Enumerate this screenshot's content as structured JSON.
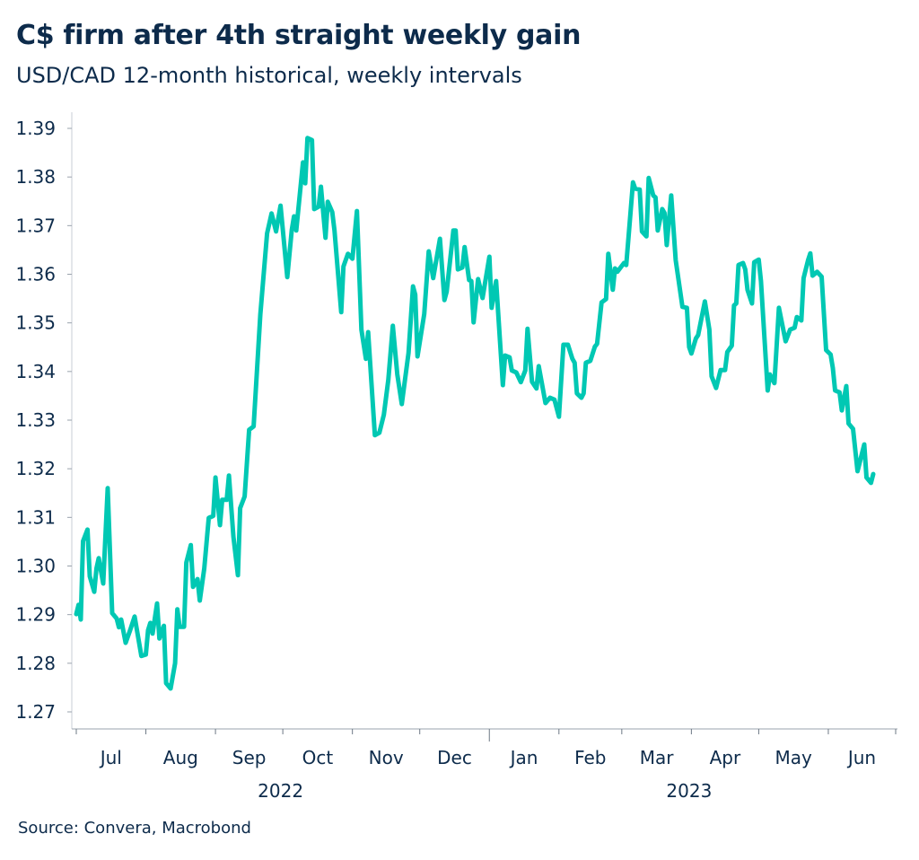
{
  "chart_data": {
    "type": "line",
    "title": "C$ firm after 4th straight weekly gain",
    "subtitle": "USD/CAD 12-month historical, weekly intervals",
    "source": "Source: Convera, Macrobond",
    "xlabel": "",
    "ylabel": "",
    "ylim": [
      1.27,
      1.39
    ],
    "xlim": [
      "2022-07-01",
      "2023-07-01"
    ],
    "y_ticks": [
      "1.27",
      "1.28",
      "1.29",
      "1.30",
      "1.31",
      "1.32",
      "1.33",
      "1.34",
      "1.35",
      "1.36",
      "1.37",
      "1.38",
      "1.39"
    ],
    "x_ticks": [
      {
        "label": "Jul",
        "date": "2022-07-01"
      },
      {
        "label": "Aug",
        "date": "2022-08-01"
      },
      {
        "label": "Sep",
        "date": "2022-09-01"
      },
      {
        "label": "Oct",
        "date": "2022-10-01"
      },
      {
        "label": "Nov",
        "date": "2022-11-01"
      },
      {
        "label": "Dec",
        "date": "2022-12-01"
      },
      {
        "label": "Jan",
        "date": "2023-01-01"
      },
      {
        "label": "Feb",
        "date": "2023-02-01"
      },
      {
        "label": "Mar",
        "date": "2023-03-01"
      },
      {
        "label": "Apr",
        "date": "2023-04-01"
      },
      {
        "label": "May",
        "date": "2023-05-01"
      },
      {
        "label": "Jun",
        "date": "2023-06-01"
      }
    ],
    "year_labels": [
      {
        "label": "2022",
        "date": "2022-09-30"
      },
      {
        "label": "2023",
        "date": "2023-03-31"
      }
    ],
    "grid": false,
    "legend": "none",
    "line_color": "#00c8b3",
    "text_color": "#0d2b4b",
    "series": [
      {
        "points": [
          [
            "2022-07-01",
            1.2901
          ],
          [
            "2022-07-02",
            1.292
          ],
          [
            "2022-07-03",
            1.289
          ],
          [
            "2022-07-04",
            1.3051
          ],
          [
            "2022-07-06",
            1.3075
          ],
          [
            "2022-07-07",
            1.2979
          ],
          [
            "2022-07-09",
            1.2947
          ],
          [
            "2022-07-10",
            1.2995
          ],
          [
            "2022-07-11",
            1.3016
          ],
          [
            "2022-07-13",
            1.2964
          ],
          [
            "2022-07-15",
            1.316
          ],
          [
            "2022-07-17",
            1.2903
          ],
          [
            "2022-07-19",
            1.2892
          ],
          [
            "2022-07-20",
            1.2874
          ],
          [
            "2022-07-21",
            1.289
          ],
          [
            "2022-07-23",
            1.2842
          ],
          [
            "2022-07-25",
            1.2868
          ],
          [
            "2022-07-27",
            1.2896
          ],
          [
            "2022-07-30",
            1.2815
          ],
          [
            "2022-08-01",
            1.2818
          ],
          [
            "2022-08-02",
            1.2868
          ],
          [
            "2022-08-03",
            1.2883
          ],
          [
            "2022-08-04",
            1.2861
          ],
          [
            "2022-08-06",
            1.2923
          ],
          [
            "2022-08-07",
            1.2851
          ],
          [
            "2022-08-09",
            1.2877
          ],
          [
            "2022-08-10",
            1.2759
          ],
          [
            "2022-08-12",
            1.2748
          ],
          [
            "2022-08-14",
            1.28
          ],
          [
            "2022-08-15",
            1.2911
          ],
          [
            "2022-08-16",
            1.2875
          ],
          [
            "2022-08-18",
            1.2875
          ],
          [
            "2022-08-19",
            1.3007
          ],
          [
            "2022-08-21",
            1.3043
          ],
          [
            "2022-08-22",
            1.2957
          ],
          [
            "2022-08-24",
            1.2973
          ],
          [
            "2022-08-25",
            1.2929
          ],
          [
            "2022-08-27",
            1.2995
          ],
          [
            "2022-08-29",
            1.3099
          ],
          [
            "2022-08-31",
            1.3103
          ],
          [
            "2022-09-01",
            1.3182
          ],
          [
            "2022-09-03",
            1.3084
          ],
          [
            "2022-09-04",
            1.3136
          ],
          [
            "2022-09-06",
            1.3136
          ],
          [
            "2022-09-07",
            1.3186
          ],
          [
            "2022-09-09",
            1.306
          ],
          [
            "2022-09-11",
            1.2981
          ],
          [
            "2022-09-12",
            1.3119
          ],
          [
            "2022-09-14",
            1.3143
          ],
          [
            "2022-09-16",
            1.328
          ],
          [
            "2022-09-18",
            1.3287
          ],
          [
            "2022-09-21",
            1.3518
          ],
          [
            "2022-09-24",
            1.3684
          ],
          [
            "2022-09-26",
            1.3725
          ],
          [
            "2022-09-28",
            1.3688
          ],
          [
            "2022-09-30",
            1.3741
          ],
          [
            "2022-10-03",
            1.3594
          ],
          [
            "2022-10-05",
            1.3691
          ],
          [
            "2022-10-06",
            1.3719
          ],
          [
            "2022-10-07",
            1.369
          ],
          [
            "2022-10-10",
            1.383
          ],
          [
            "2022-10-11",
            1.3787
          ],
          [
            "2022-10-12",
            1.388
          ],
          [
            "2022-10-14",
            1.3876
          ],
          [
            "2022-10-15",
            1.3734
          ],
          [
            "2022-10-17",
            1.3739
          ],
          [
            "2022-10-18",
            1.378
          ],
          [
            "2022-10-20",
            1.3675
          ],
          [
            "2022-10-21",
            1.3749
          ],
          [
            "2022-10-23",
            1.3728
          ],
          [
            "2022-10-24",
            1.369
          ],
          [
            "2022-10-27",
            1.3522
          ],
          [
            "2022-10-28",
            1.3616
          ],
          [
            "2022-10-30",
            1.3642
          ],
          [
            "2022-11-01",
            1.3632
          ],
          [
            "2022-11-03",
            1.373
          ],
          [
            "2022-11-05",
            1.3486
          ],
          [
            "2022-11-07",
            1.3426
          ],
          [
            "2022-11-08",
            1.3481
          ],
          [
            "2022-11-11",
            1.3269
          ],
          [
            "2022-11-13",
            1.3274
          ],
          [
            "2022-11-15",
            1.3311
          ],
          [
            "2022-11-17",
            1.3383
          ],
          [
            "2022-11-19",
            1.3494
          ],
          [
            "2022-11-21",
            1.3394
          ],
          [
            "2022-11-23",
            1.3333
          ],
          [
            "2022-11-26",
            1.3438
          ],
          [
            "2022-11-28",
            1.3575
          ],
          [
            "2022-11-29",
            1.3558
          ],
          [
            "2022-11-30",
            1.3431
          ],
          [
            "2022-12-03",
            1.3518
          ],
          [
            "2022-12-05",
            1.3647
          ],
          [
            "2022-12-07",
            1.3592
          ],
          [
            "2022-12-10",
            1.3673
          ],
          [
            "2022-12-12",
            1.3547
          ],
          [
            "2022-12-13",
            1.3564
          ],
          [
            "2022-12-16",
            1.369
          ],
          [
            "2022-12-17",
            1.369
          ],
          [
            "2022-12-18",
            1.361
          ],
          [
            "2022-12-20",
            1.3614
          ],
          [
            "2022-12-21",
            1.3656
          ],
          [
            "2022-12-23",
            1.3588
          ],
          [
            "2022-12-24",
            1.3586
          ],
          [
            "2022-12-25",
            1.3501
          ],
          [
            "2022-12-27",
            1.359
          ],
          [
            "2022-12-29",
            1.3551
          ],
          [
            "2023-01-01",
            1.3636
          ],
          [
            "2023-01-02",
            1.3531
          ],
          [
            "2023-01-04",
            1.3586
          ],
          [
            "2023-01-07",
            1.3372
          ],
          [
            "2023-01-08",
            1.3433
          ],
          [
            "2023-01-10",
            1.3429
          ],
          [
            "2023-01-11",
            1.3402
          ],
          [
            "2023-01-13",
            1.3398
          ],
          [
            "2023-01-15",
            1.3378
          ],
          [
            "2023-01-17",
            1.3402
          ],
          [
            "2023-01-18",
            1.3488
          ],
          [
            "2023-01-20",
            1.3379
          ],
          [
            "2023-01-22",
            1.3365
          ],
          [
            "2023-01-23",
            1.3411
          ],
          [
            "2023-01-26",
            1.3335
          ],
          [
            "2023-01-28",
            1.3346
          ],
          [
            "2023-01-30",
            1.3342
          ],
          [
            "2023-02-01",
            1.3307
          ],
          [
            "2023-02-03",
            1.3455
          ],
          [
            "2023-02-05",
            1.3455
          ],
          [
            "2023-02-07",
            1.3426
          ],
          [
            "2023-02-08",
            1.3418
          ],
          [
            "2023-02-09",
            1.3355
          ],
          [
            "2023-02-11",
            1.3346
          ],
          [
            "2023-02-12",
            1.3355
          ],
          [
            "2023-02-13",
            1.3418
          ],
          [
            "2023-02-15",
            1.3422
          ],
          [
            "2023-02-17",
            1.3451
          ],
          [
            "2023-02-18",
            1.3457
          ],
          [
            "2023-02-20",
            1.3542
          ],
          [
            "2023-02-22",
            1.3549
          ],
          [
            "2023-02-23",
            1.3642
          ],
          [
            "2023-02-25",
            1.3568
          ],
          [
            "2023-02-26",
            1.3612
          ],
          [
            "2023-02-27",
            1.3605
          ],
          [
            "2023-03-02",
            1.3623
          ],
          [
            "2023-03-03",
            1.3619
          ],
          [
            "2023-03-06",
            1.3789
          ],
          [
            "2023-03-07",
            1.3776
          ],
          [
            "2023-03-09",
            1.3774
          ],
          [
            "2023-03-10",
            1.3688
          ],
          [
            "2023-03-12",
            1.3678
          ],
          [
            "2023-03-13",
            1.3798
          ],
          [
            "2023-03-15",
            1.3762
          ],
          [
            "2023-03-16",
            1.3758
          ],
          [
            "2023-03-17",
            1.369
          ],
          [
            "2023-03-19",
            1.3734
          ],
          [
            "2023-03-20",
            1.3726
          ],
          [
            "2023-03-21",
            1.366
          ],
          [
            "2023-03-23",
            1.3762
          ],
          [
            "2023-03-25",
            1.3629
          ],
          [
            "2023-03-28",
            1.3533
          ],
          [
            "2023-03-30",
            1.3531
          ],
          [
            "2023-03-31",
            1.345
          ],
          [
            "2023-04-01",
            1.3437
          ],
          [
            "2023-04-03",
            1.3468
          ],
          [
            "2023-04-04",
            1.3475
          ],
          [
            "2023-04-07",
            1.3544
          ],
          [
            "2023-04-09",
            1.3486
          ],
          [
            "2023-04-10",
            1.339
          ],
          [
            "2023-04-12",
            1.3366
          ],
          [
            "2023-04-14",
            1.3403
          ],
          [
            "2023-04-16",
            1.3403
          ],
          [
            "2023-04-17",
            1.344
          ],
          [
            "2023-04-19",
            1.3453
          ],
          [
            "2023-04-20",
            1.3536
          ],
          [
            "2023-04-21",
            1.354
          ],
          [
            "2023-04-22",
            1.3619
          ],
          [
            "2023-04-24",
            1.3623
          ],
          [
            "2023-04-25",
            1.361
          ],
          [
            "2023-04-26",
            1.3568
          ],
          [
            "2023-04-28",
            1.354
          ],
          [
            "2023-04-29",
            1.3625
          ],
          [
            "2023-05-01",
            1.363
          ],
          [
            "2023-05-02",
            1.3586
          ],
          [
            "2023-05-05",
            1.3361
          ],
          [
            "2023-05-06",
            1.3394
          ],
          [
            "2023-05-08",
            1.3376
          ],
          [
            "2023-05-10",
            1.3531
          ],
          [
            "2023-05-13",
            1.3462
          ],
          [
            "2023-05-15",
            1.3486
          ],
          [
            "2023-05-17",
            1.349
          ],
          [
            "2023-05-18",
            1.3512
          ],
          [
            "2023-05-20",
            1.3505
          ],
          [
            "2023-05-21",
            1.3592
          ],
          [
            "2023-05-23",
            1.3629
          ],
          [
            "2023-05-24",
            1.3643
          ],
          [
            "2023-05-25",
            1.3597
          ],
          [
            "2023-05-27",
            1.3605
          ],
          [
            "2023-05-29",
            1.3595
          ],
          [
            "2023-05-31",
            1.3444
          ],
          [
            "2023-06-02",
            1.3435
          ],
          [
            "2023-06-03",
            1.3407
          ],
          [
            "2023-06-04",
            1.3361
          ],
          [
            "2023-06-06",
            1.3357
          ],
          [
            "2023-06-07",
            1.332
          ],
          [
            "2023-06-09",
            1.337
          ],
          [
            "2023-06-10",
            1.3293
          ],
          [
            "2023-06-12",
            1.3282
          ],
          [
            "2023-06-14",
            1.3195
          ],
          [
            "2023-06-17",
            1.325
          ],
          [
            "2023-06-18",
            1.3182
          ],
          [
            "2023-06-20",
            1.3171
          ],
          [
            "2023-06-21",
            1.3189
          ]
        ]
      }
    ]
  }
}
